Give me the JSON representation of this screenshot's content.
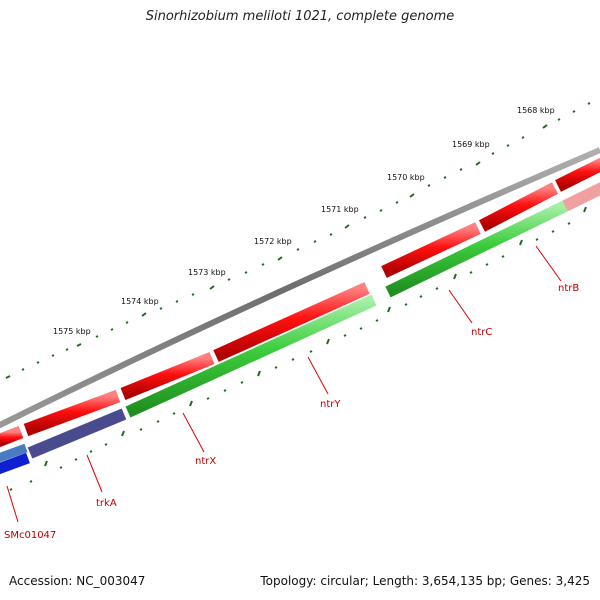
{
  "title": "Sinorhizobium meliloti 1021, complete genome",
  "footer": {
    "accession": "Accession: NC_003047",
    "summary": "Topology: circular; Length: 3,654,135 bp; Genes: 3,425"
  },
  "scale": {
    "labels": [
      "1568 kbp",
      "1569 kbp",
      "1570 kbp",
      "1571 kbp",
      "1572 kbp",
      "1573 kbp",
      "1574 kbp",
      "1575 kbp"
    ]
  },
  "genes": [
    {
      "name": "SMc01047"
    },
    {
      "name": "trkA"
    },
    {
      "name": "ntrX"
    },
    {
      "name": "ntrY"
    },
    {
      "name": "ntrC"
    },
    {
      "name": "ntrB"
    }
  ],
  "colors": {
    "backbone": "#7a7a7a",
    "forward_cds": "#e00000",
    "reverse_cds": "#2fbf2f",
    "trkA_cds": "#4a4a8e",
    "smc_cds": "#1020d0",
    "ticks": "#1a6e1a",
    "gene_label": "#c00000"
  }
}
